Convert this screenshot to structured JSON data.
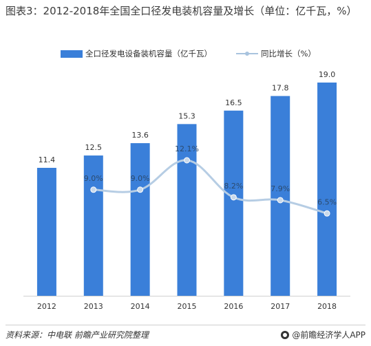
{
  "title": "图表3：2012-2018年全国全口径发电装机容量及增长（单位：亿千瓦，%）",
  "legend": {
    "bar_label": "全口径发电设备装机容量（亿千瓦）",
    "line_label": "同比增长（%）"
  },
  "source": "资料来源：中电联 前瞻产业研究院整理",
  "brand": "@前瞻经济学人APP",
  "colors": {
    "bar": "#3a7fd9",
    "line": "#b6cde4",
    "marker": "#c9d9ea",
    "text": "#333333"
  },
  "chart_data": {
    "type": "bar",
    "categories": [
      "2012",
      "2013",
      "2014",
      "2015",
      "2016",
      "2017",
      "2018"
    ],
    "series": [
      {
        "name": "全口径发电设备装机容量（亿千瓦）",
        "type": "bar",
        "values": [
          11.4,
          12.5,
          13.6,
          15.3,
          16.5,
          17.8,
          19.0
        ],
        "labels": [
          "11.4",
          "12.5",
          "13.6",
          "15.3",
          "16.5",
          "17.8",
          "19.0"
        ]
      },
      {
        "name": "同比增长（%）",
        "type": "line",
        "values": [
          null,
          9.0,
          9.0,
          12.1,
          8.2,
          7.9,
          6.5
        ],
        "labels": [
          "",
          "9.0%",
          "9.0%",
          "12.1%",
          "8.2%",
          "7.9%",
          "6.5%"
        ]
      }
    ],
    "title": "图表3：2012-2018年全国全口径发电装机容量及增长（单位：亿千瓦，%）",
    "xlabel": "",
    "ylabel": "",
    "ylim": [
      0,
      20
    ],
    "y2lim": [
      0,
      14
    ],
    "grid": false,
    "legend_position": "top"
  }
}
